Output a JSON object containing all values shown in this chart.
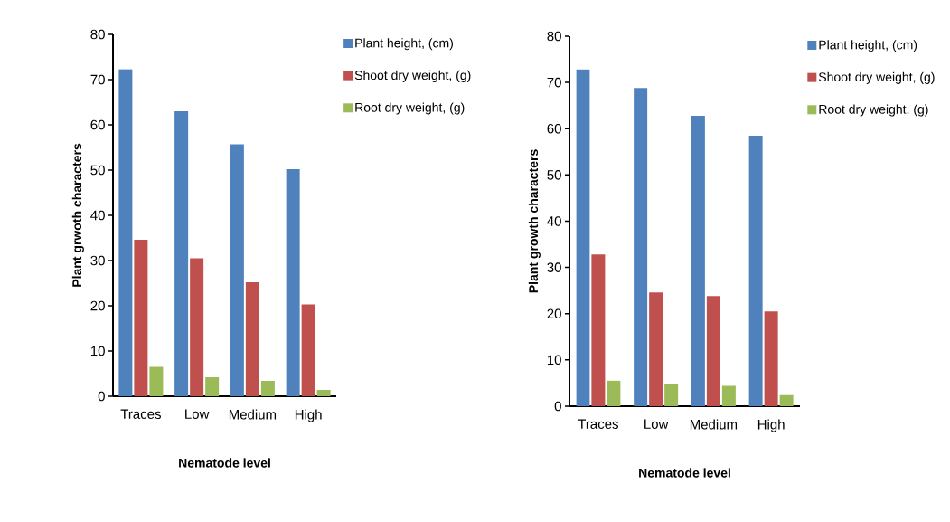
{
  "chart_data": [
    {
      "type": "bar",
      "xlabel": "Nematode level",
      "ylabel": "Plant grwoth characters",
      "categories": [
        "Traces",
        "Low",
        "Medium",
        "High"
      ],
      "series": [
        {
          "name": "Plant height, (cm)",
          "color": "#4f81bd",
          "values": [
            72.3,
            63,
            55.7,
            50.2
          ]
        },
        {
          "name": "Shoot dry weight, (g)",
          "color": "#c0504d",
          "values": [
            34.6,
            30.5,
            25.2,
            20.3
          ]
        },
        {
          "name": "Root dry weight, (g)",
          "color": "#9bbb59",
          "values": [
            6.5,
            4.2,
            3.4,
            1.4
          ]
        }
      ],
      "ylim": [
        0,
        80
      ],
      "yticks": [
        0,
        10,
        20,
        30,
        40,
        50,
        60,
        70,
        80
      ],
      "grid": false,
      "legend": "top right"
    },
    {
      "type": "bar",
      "xlabel": "Nematode level",
      "ylabel": "Plant growth characters",
      "categories": [
        "Traces",
        "Low",
        "Medium",
        "High"
      ],
      "series": [
        {
          "name": "Plant height, (cm)",
          "color": "#4f81bd",
          "values": [
            72.8,
            68.8,
            62.8,
            58.5
          ]
        },
        {
          "name": "Shoot dry weight, (g)",
          "color": "#c0504d",
          "values": [
            32.8,
            24.6,
            23.8,
            20.5
          ]
        },
        {
          "name": "Root dry weight, (g)",
          "color": "#9bbb59",
          "values": [
            5.5,
            4.8,
            4.4,
            2.4
          ]
        }
      ],
      "ylim": [
        0,
        80
      ],
      "yticks": [
        0,
        10,
        20,
        30,
        40,
        50,
        60,
        70,
        80
      ],
      "grid": false,
      "legend": "top right"
    }
  ]
}
